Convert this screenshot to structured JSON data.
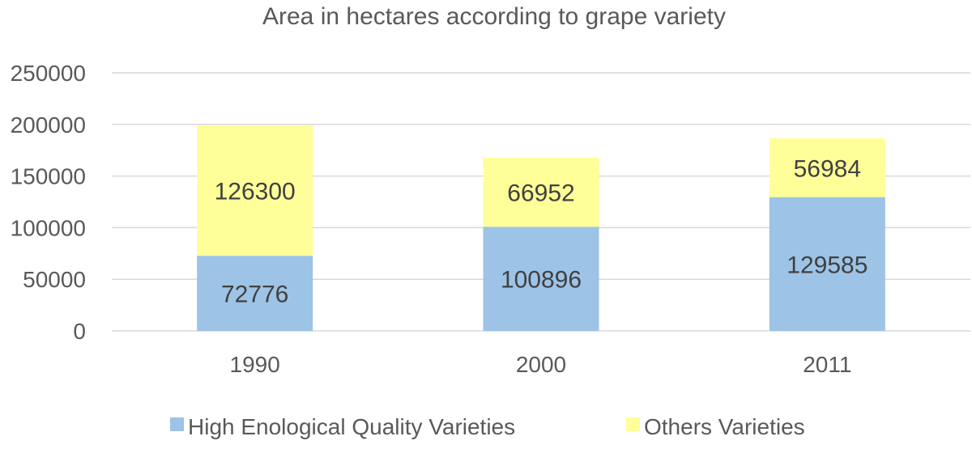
{
  "chart_data": {
    "type": "bar",
    "stacked": true,
    "title": "Area in hectares according to grape variety",
    "xlabel": "",
    "ylabel": "",
    "categories": [
      "1990",
      "2000",
      "2011"
    ],
    "series": [
      {
        "name": "High Enological Quality Varieties",
        "values": [
          72776,
          100896,
          129585
        ],
        "color": "#9dc3e6"
      },
      {
        "name": "Others Varieties",
        "values": [
          126300,
          66952,
          56984
        ],
        "color": "#ffff99"
      }
    ],
    "ylim": [
      0,
      250000
    ],
    "yticks": [
      0,
      50000,
      100000,
      150000,
      200000,
      250000
    ],
    "grid": true,
    "legend": "bottom",
    "data_labels": true
  }
}
